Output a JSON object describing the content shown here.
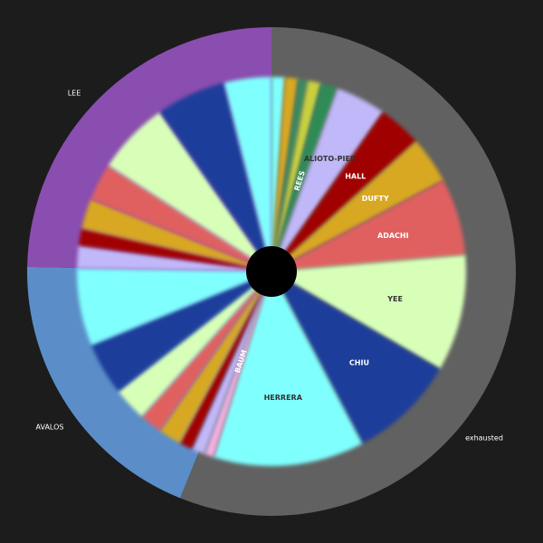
{
  "chart_data": {
    "type": "sunburst",
    "outer": [
      {
        "label": "exhausted",
        "color": "#616161",
        "value": 56.1
      },
      {
        "label": "AVALOS",
        "color": "#5b8ec8",
        "value": 19.2
      },
      {
        "label": "LEE",
        "color": "#8a4db0",
        "value": 24.7
      }
    ],
    "inner": [
      {
        "color": "#80ffff",
        "value": 1.1
      },
      {
        "color": "#d8a820",
        "value": 1.1
      },
      {
        "color": "#3a8a60",
        "value": 0.8
      },
      {
        "color": "#c8d040",
        "value": 1.1
      },
      {
        "label": "REES",
        "color": "#2e8b57",
        "value": 1.4
      },
      {
        "label": "ALIOTO-PIER",
        "color": "#c0b8f8",
        "value": 4.2
      },
      {
        "label": "HALL",
        "color": "#a00000",
        "value": 3.6
      },
      {
        "label": "DUFTY",
        "color": "#d8a820",
        "value": 3.9
      },
      {
        "label": "ADACHI",
        "color": "#e06060",
        "value": 6.4
      },
      {
        "label": "YEE",
        "color": "#d8ffb8",
        "value": 9.7
      },
      {
        "label": "CHIU",
        "color": "#1e3c9a",
        "value": 8.9
      },
      {
        "label": "HERRERA",
        "color": "#80ffff",
        "value": 12.5
      },
      {
        "label": "BAUM",
        "color": "#f0b0e0",
        "value": 0.8
      },
      {
        "color": "#c0b8f8",
        "value": 1.1
      },
      {
        "color": "#a00000",
        "value": 1.1
      },
      {
        "color": "#d8a820",
        "value": 1.9
      },
      {
        "color": "#e06060",
        "value": 1.9
      },
      {
        "color": "#d8ffb8",
        "value": 2.8
      },
      {
        "color": "#1e3c9a",
        "value": 4.4
      },
      {
        "color": "#80ffff",
        "value": 6.4
      },
      {
        "color": "#c0b8f8",
        "value": 1.9
      },
      {
        "color": "#a00000",
        "value": 1.4
      },
      {
        "color": "#d8a820",
        "value": 2.5
      },
      {
        "color": "#e06060",
        "value": 3.1
      },
      {
        "color": "#d8ffb8",
        "value": 6.1
      },
      {
        "color": "#1e3c9a",
        "value": 5.8
      },
      {
        "color": "#80ffff",
        "value": 3.9
      }
    ]
  }
}
